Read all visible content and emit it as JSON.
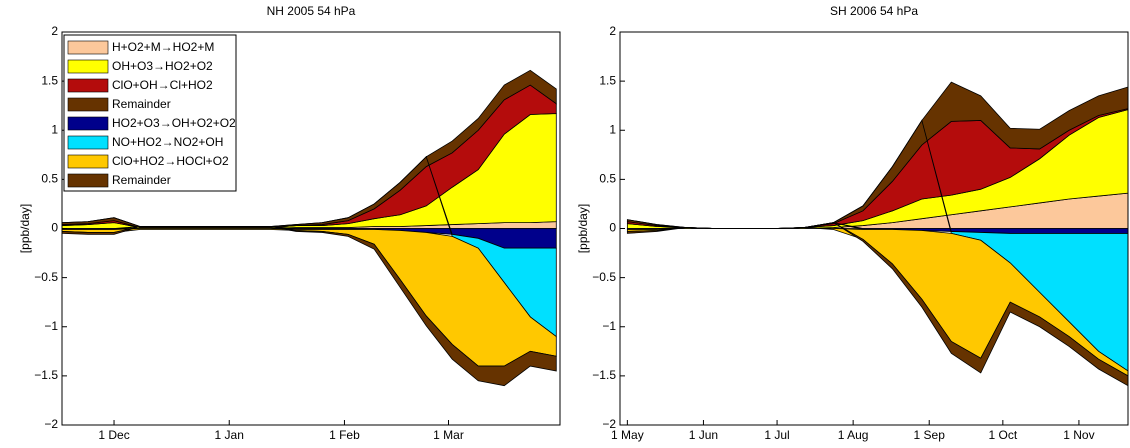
{
  "chart_data": [
    {
      "type": "area",
      "stacked": true,
      "title": "NH 2005 54 hPa",
      "y_label": "[ppb/day]",
      "x": [
        0,
        7,
        14,
        21,
        28,
        35,
        42,
        49,
        56,
        63,
        70,
        77,
        84,
        91,
        98,
        105,
        112,
        119,
        126,
        133
      ],
      "xlim": [
        0,
        134
      ],
      "xticks": [
        {
          "value": 14,
          "label": "1 Dec"
        },
        {
          "value": 45,
          "label": "1 Jan"
        },
        {
          "value": 76,
          "label": "1 Feb"
        },
        {
          "value": 104,
          "label": "1 Mar"
        }
      ],
      "ylim": [
        -2,
        2
      ],
      "yticks": [
        {
          "value": -2,
          "label": "−2"
        },
        {
          "value": -1.5,
          "label": "−1.5"
        },
        {
          "value": -1,
          "label": "−1"
        },
        {
          "value": -0.5,
          "label": "−0.5"
        },
        0,
        0.5,
        1,
        1.5,
        2
      ],
      "legend": "upper left",
      "series": [
        {
          "name": "H+O2+M→HO2+M",
          "color": "#fcc89b",
          "values": [
            0,
            0,
            0,
            0,
            0,
            0,
            0,
            0,
            0,
            0.01,
            0.01,
            0.01,
            0.02,
            0.02,
            0.03,
            0.04,
            0.05,
            0.06,
            0.06,
            0.07
          ]
        },
        {
          "name": "OH+O3→HO2+O2",
          "color": "#ffff00",
          "values": [
            0.03,
            0.04,
            0.06,
            0.01,
            0.01,
            0.01,
            0.01,
            0.01,
            0.01,
            0.02,
            0.02,
            0.04,
            0.08,
            0.12,
            0.2,
            0.38,
            0.55,
            0.9,
            1.1,
            1.1
          ]
        },
        {
          "name": "ClO+OH→Cl+HO2",
          "color": "#b40c0c",
          "values": [
            0.01,
            0.01,
            0.02,
            0,
            0,
            0,
            0,
            0,
            0,
            0,
            0.01,
            0.03,
            0.1,
            0.25,
            0.4,
            0.35,
            0.4,
            0.35,
            0.3,
            0.1
          ]
        },
        {
          "name": "Remainder",
          "color": "#663300",
          "values": [
            0.02,
            0.02,
            0.03,
            0.01,
            0.01,
            0.01,
            0.01,
            0.01,
            0.01,
            0.01,
            0.02,
            0.03,
            0.05,
            0.08,
            0.1,
            0.12,
            0.12,
            0.15,
            0.15,
            0.15
          ]
        },
        {
          "name": "HO2+O3→OH+O2+O2",
          "color": "#00008b",
          "values": [
            -0.01,
            -0.01,
            -0.01,
            0,
            0,
            0,
            0,
            0,
            0,
            -0.01,
            -0.01,
            -0.01,
            -0.01,
            -0.02,
            -0.04,
            -0.06,
            -0.1,
            -0.2,
            -0.2,
            -0.2
          ]
        },
        {
          "name": "NO+HO2→NO2+OH",
          "color": "#00e0ff",
          "values": [
            0,
            0,
            0,
            0,
            0,
            0,
            0,
            0,
            0,
            0,
            0,
            0,
            0,
            0,
            0,
            -0.02,
            -0.1,
            -0.35,
            -0.7,
            -0.9
          ]
        },
        {
          "name": "ClO+HO2→HOCl+O2",
          "color": "#ffc800",
          "values": [
            -0.02,
            -0.03,
            -0.03,
            -0.01,
            -0.01,
            -0.01,
            -0.01,
            -0.01,
            -0.01,
            -0.01,
            -0.02,
            -0.05,
            -0.15,
            -0.5,
            -0.85,
            -1.1,
            -1.2,
            -0.85,
            -0.35,
            -0.2
          ]
        },
        {
          "name": "Remainder",
          "color": "#663300",
          "values": [
            -0.02,
            -0.02,
            -0.02,
            0,
            0,
            0,
            0,
            0,
            0,
            -0.01,
            -0.01,
            -0.02,
            -0.05,
            -0.08,
            -0.1,
            -0.15,
            -0.15,
            -0.2,
            -0.15,
            -0.15
          ]
        }
      ]
    },
    {
      "type": "area",
      "stacked": true,
      "title": "SH 2006 54 hPa",
      "y_label": "[ppb/day]",
      "x": [
        0,
        12,
        24,
        36,
        48,
        60,
        72,
        84,
        96,
        108,
        120,
        132,
        144,
        156,
        168,
        180,
        192,
        204
      ],
      "xlim": [
        -3,
        204
      ],
      "xticks": [
        {
          "value": 0,
          "label": "1 May"
        },
        {
          "value": 31,
          "label": "1 Jun"
        },
        {
          "value": 61,
          "label": "1 Jul"
        },
        {
          "value": 92,
          "label": "1 Aug"
        },
        {
          "value": 123,
          "label": "1 Sep"
        },
        {
          "value": 153,
          "label": "1 Oct"
        },
        {
          "value": 184,
          "label": "1 Nov"
        }
      ],
      "ylim": [
        -2,
        2
      ],
      "yticks": [
        {
          "value": -2,
          "label": "−2"
        },
        {
          "value": -1.5,
          "label": "−1.5"
        },
        {
          "value": -1,
          "label": "−1"
        },
        {
          "value": -0.5,
          "label": "−0.5"
        },
        0,
        0.5,
        1,
        1.5,
        2
      ],
      "series": [
        {
          "color": "#fcc89b",
          "values": [
            0,
            0,
            0,
            0,
            0,
            0,
            0,
            0.01,
            0.03,
            0.06,
            0.1,
            0.14,
            0.18,
            0.22,
            0.26,
            0.3,
            0.33,
            0.36
          ]
        },
        {
          "color": "#ffff00",
          "values": [
            0.05,
            0.02,
            0.01,
            0,
            0,
            0,
            0.01,
            0.02,
            0.05,
            0.12,
            0.2,
            0.2,
            0.22,
            0.3,
            0.45,
            0.65,
            0.8,
            0.85
          ]
        },
        {
          "color": "#b40c0c",
          "values": [
            0.02,
            0.01,
            0,
            0,
            0,
            0,
            0,
            0.02,
            0.1,
            0.3,
            0.55,
            0.75,
            0.7,
            0.3,
            0.1,
            0.05,
            0.02,
            0.01
          ]
        },
        {
          "color": "#663300",
          "values": [
            0.02,
            0.01,
            0,
            0,
            0,
            0,
            0,
            0.01,
            0.05,
            0.15,
            0.25,
            0.4,
            0.25,
            0.2,
            0.2,
            0.2,
            0.2,
            0.22
          ]
        },
        {
          "color": "#00008b",
          "values": [
            -0.01,
            -0.01,
            0,
            0,
            0,
            0,
            0,
            0,
            -0.01,
            -0.01,
            -0.02,
            -0.03,
            -0.04,
            -0.05,
            -0.05,
            -0.05,
            -0.05,
            -0.05
          ]
        },
        {
          "color": "#00e0ff",
          "values": [
            0,
            0,
            0,
            0,
            0,
            0,
            0,
            0,
            0,
            0,
            0,
            -0.02,
            -0.08,
            -0.3,
            -0.6,
            -0.9,
            -1.2,
            -1.4
          ]
        },
        {
          "color": "#ffc800",
          "values": [
            -0.02,
            -0.01,
            0,
            0,
            0,
            0,
            0,
            -0.01,
            -0.1,
            -0.35,
            -0.7,
            -1.1,
            -1.2,
            -0.4,
            -0.25,
            -0.15,
            -0.08,
            -0.05
          ]
        },
        {
          "color": "#663300",
          "values": [
            -0.02,
            -0.01,
            0,
            0,
            0,
            0,
            0,
            0,
            -0.02,
            -0.05,
            -0.08,
            -0.12,
            -0.15,
            -0.1,
            -0.1,
            -0.1,
            -0.1,
            -0.1
          ]
        }
      ]
    }
  ]
}
